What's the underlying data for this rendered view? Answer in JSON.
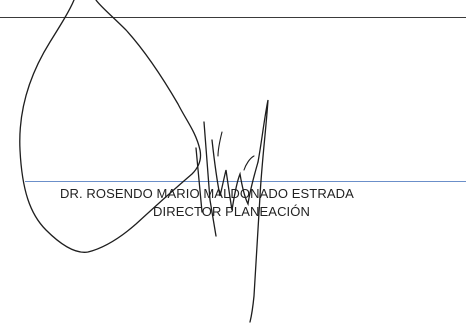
{
  "signature_block": {
    "name": "DR. ROSENDO MARIO MALDONADO ESTRADA",
    "title": "DIRECTOR PLANEACIÓN"
  },
  "colors": {
    "ink": "#1e1e1e",
    "rule_blue": "#6b8fc9",
    "text": "#222222"
  }
}
